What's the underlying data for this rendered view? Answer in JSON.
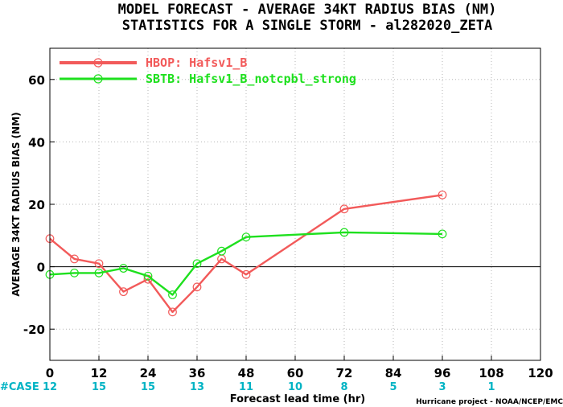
{
  "chart_data": {
    "type": "line",
    "title": "MODEL FORECAST - AVERAGE 34KT RADIUS BIAS (NM)",
    "subtitle": "STATISTICS FOR A SINGLE STORM - al282020_ZETA",
    "xlabel": "Forecast lead time (hr)",
    "ylabel": "AVERAGE 34KT RADIUS BIAS (NM)",
    "xlim": [
      0,
      120
    ],
    "ylim": [
      -30,
      70
    ],
    "xticks": [
      0,
      12,
      24,
      36,
      48,
      60,
      72,
      84,
      96,
      108,
      120
    ],
    "yticks": [
      -20,
      0,
      20,
      40,
      60
    ],
    "grid": true,
    "legend_position": "top-left",
    "series": [
      {
        "name": "HBOP: Hafsv1_B",
        "color": "#f25a5a",
        "x": [
          0,
          6,
          12,
          18,
          24,
          30,
          36,
          42,
          48,
          72,
          96
        ],
        "y": [
          9,
          2.5,
          1,
          -8,
          -4,
          -14.5,
          -6.5,
          2.5,
          -2.5,
          18.5,
          23
        ]
      },
      {
        "name": "SBTB: Hafsv1_B_notcpbl_strong",
        "color": "#1ee01e",
        "x": [
          0,
          6,
          12,
          18,
          24,
          30,
          36,
          42,
          48,
          72,
          96
        ],
        "y": [
          -2.5,
          -2,
          -2,
          -0.5,
          -3,
          -9,
          1,
          5,
          9.5,
          11,
          10.5
        ]
      }
    ],
    "case_label": "#CASE",
    "case_counts": [
      {
        "x": 0,
        "count": "12"
      },
      {
        "x": 12,
        "count": "15"
      },
      {
        "x": 24,
        "count": "15"
      },
      {
        "x": 36,
        "count": "13"
      },
      {
        "x": 48,
        "count": "11"
      },
      {
        "x": 60,
        "count": "10"
      },
      {
        "x": 72,
        "count": "8"
      },
      {
        "x": 84,
        "count": "5"
      },
      {
        "x": 96,
        "count": "3"
      },
      {
        "x": 108,
        "count": "1"
      }
    ],
    "case_color": "#00b3c4",
    "credit": "Hurricane project - NOAA/NCEP/EMC"
  }
}
